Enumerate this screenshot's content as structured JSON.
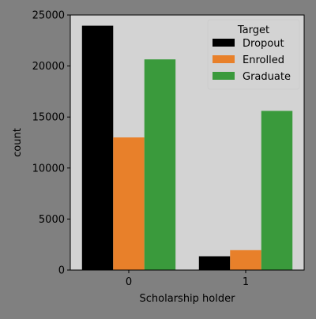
{
  "colors": {
    "figure_bg": "#808080",
    "axes_bg": "#d3d3d3",
    "legend_bg": "#d3d3d3",
    "text": "#000000"
  },
  "chart_data": {
    "type": "bar",
    "xlabel": "Scholarship holder",
    "ylabel": "count",
    "categories": [
      "0",
      "1"
    ],
    "ylim": [
      0,
      25000
    ],
    "yticks": [
      "0",
      "5000",
      "10000",
      "15000",
      "20000",
      "25000"
    ],
    "grid": false,
    "legend": {
      "title": "Target",
      "placement": "top-right"
    },
    "series": [
      {
        "name": "Dropout",
        "color": "#000000",
        "values": [
          23950,
          1350
        ]
      },
      {
        "name": "Enrolled",
        "color": "#e8802a",
        "values": [
          13000,
          1950
        ]
      },
      {
        "name": "Graduate",
        "color": "#3a9a3c",
        "values": [
          20650,
          15600
        ]
      }
    ]
  }
}
